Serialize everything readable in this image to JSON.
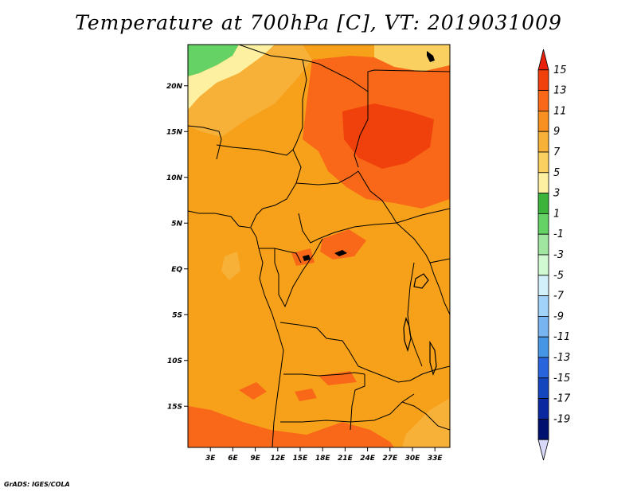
{
  "title": "Temperature at 700hPa [C], VT: 2019031009",
  "footer": "GrADS: IGES/COLA",
  "map": {
    "background": "#f7a11a",
    "lat_labels": [
      "20N",
      "15N",
      "10N",
      "5N",
      "EQ",
      "5S",
      "10S",
      "15S"
    ],
    "lat_values": [
      20,
      15,
      10,
      5,
      0,
      -5,
      -10,
      -15
    ],
    "lon_labels": [
      "3E",
      "6E",
      "9E",
      "12E",
      "15E",
      "18E",
      "21E",
      "24E",
      "27E",
      "30E",
      "33E"
    ],
    "lon_values": [
      3,
      6,
      9,
      12,
      15,
      18,
      21,
      24,
      27,
      30,
      33
    ],
    "lat_range": [
      -19.5,
      24.5
    ],
    "lon_range": [
      0,
      35
    ]
  },
  "colorbar": {
    "labels": [
      "15",
      "13",
      "11",
      "9",
      "7",
      "5",
      "3",
      "1",
      "-1",
      "-3",
      "-5",
      "-7",
      "-9",
      "-11",
      "-13",
      "-15",
      "-17",
      "-19"
    ],
    "colors": [
      "#e8200c",
      "#f0400c",
      "#f86818",
      "#f79020",
      "#f7b038",
      "#fad060",
      "#fdf0a0",
      "#3cb43c",
      "#64d264",
      "#a0e6a0",
      "#d2fad2",
      "#d2f0fa",
      "#a0d2fa",
      "#78b4f0",
      "#4696e6",
      "#2864dc",
      "#1446be",
      "#0a28a0",
      "#00106e",
      "#d8d8f8"
    ]
  }
}
